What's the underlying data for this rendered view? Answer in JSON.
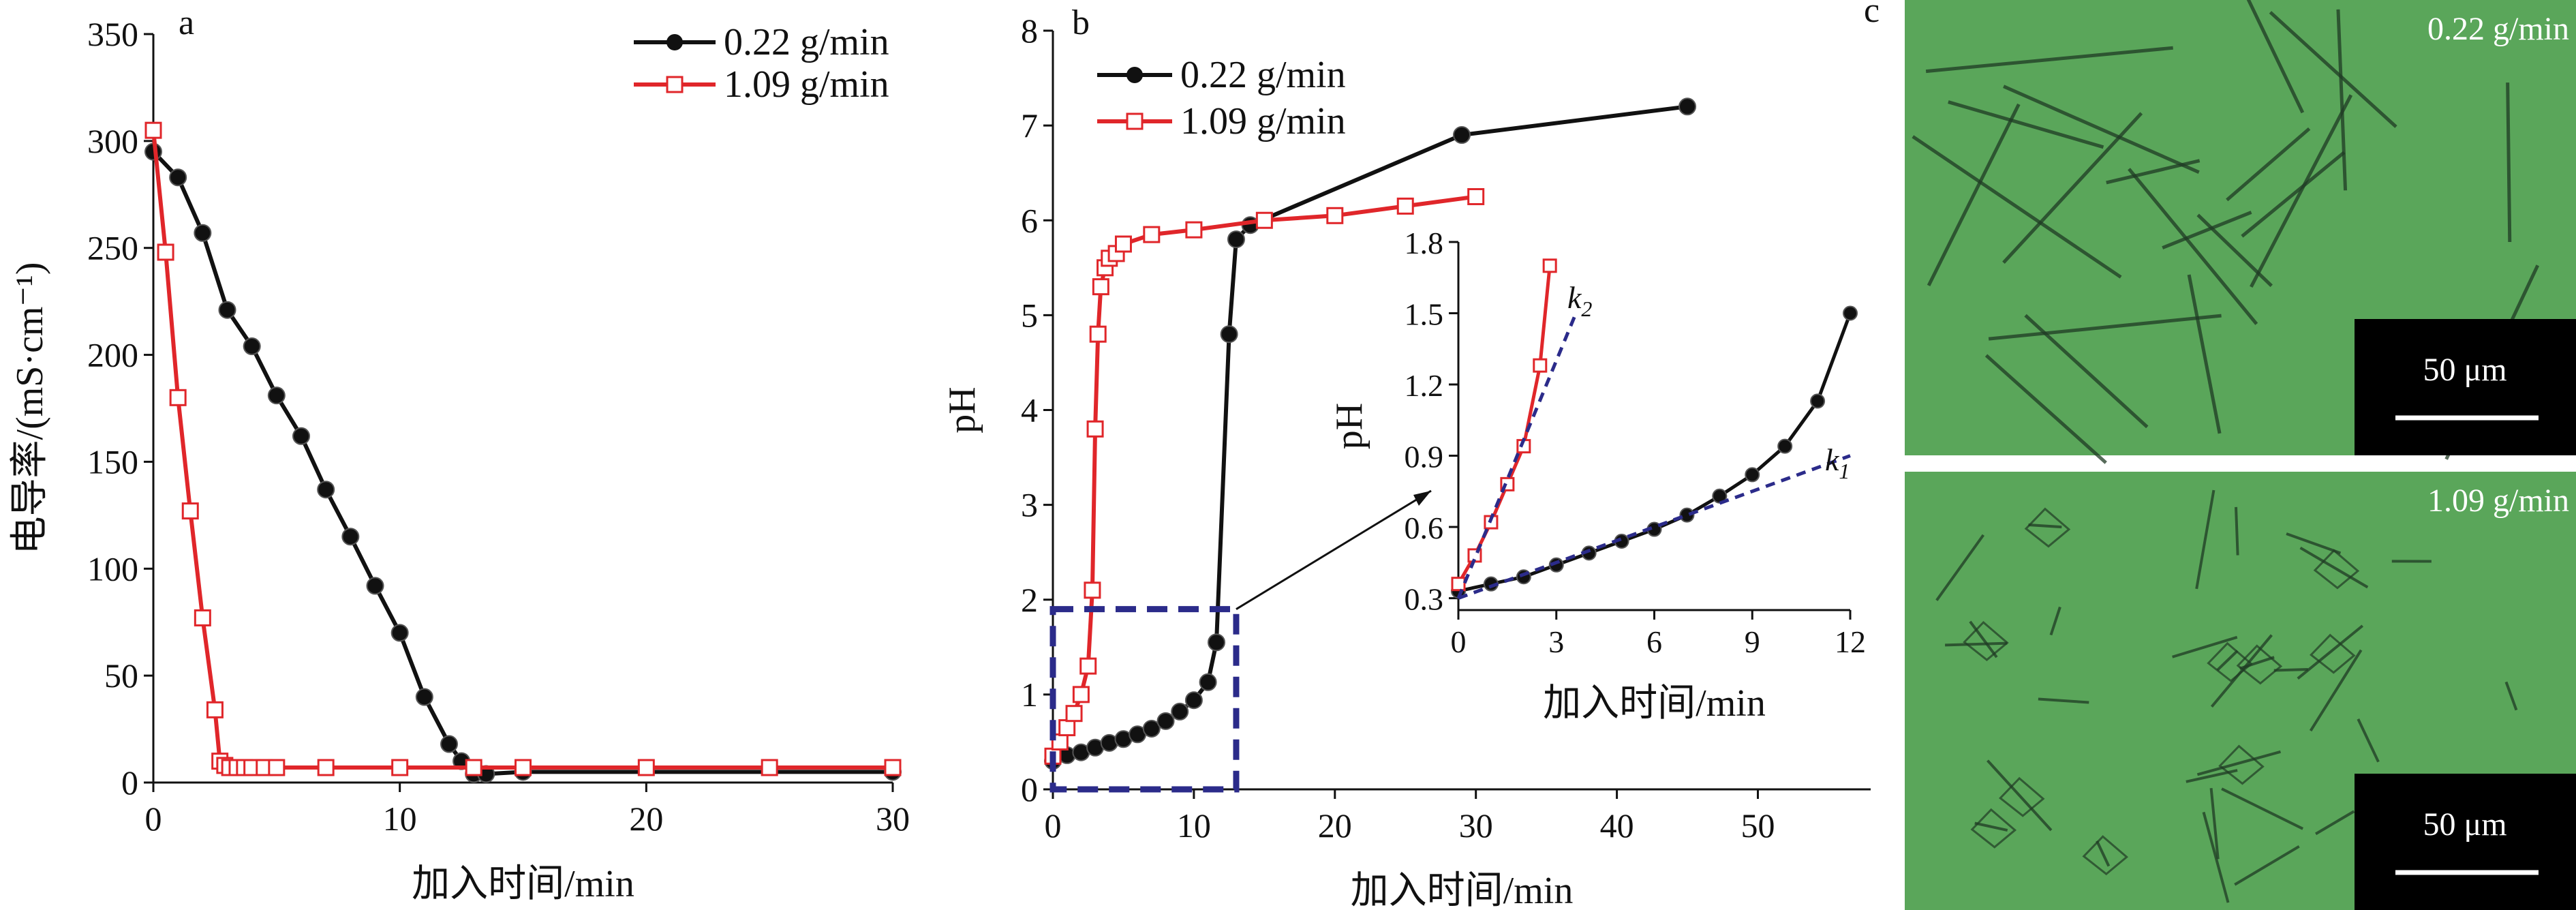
{
  "panel_labels": {
    "a": "a",
    "b": "b",
    "c": "c"
  },
  "colors": {
    "black_series": "#111111",
    "red_series": "#e0262a",
    "dashed": "#2b2b8a",
    "micro_bg": "#5aa65a"
  },
  "chart_data": [
    {
      "id": "a",
      "type": "line",
      "xlabel": "加入时间/min",
      "ylabel": "电导率/(mS·cm⁻¹)",
      "xlim": [
        0,
        30
      ],
      "ylim": [
        0,
        350
      ],
      "xticks": [
        "0",
        "10",
        "20",
        "30"
      ],
      "yticks": [
        "0",
        "50",
        "100",
        "150",
        "200",
        "250",
        "300",
        "350"
      ],
      "legend": "top-right",
      "series": [
        {
          "name": "0.22 g/min",
          "color": "#111111",
          "marker": "circle",
          "x": [
            0,
            1,
            2,
            3,
            4,
            5,
            6,
            7,
            8,
            9,
            10,
            11,
            12,
            12.5,
            13,
            13.5,
            15,
            30
          ],
          "y": [
            295,
            283,
            257,
            221,
            204,
            181,
            162,
            137,
            115,
            92,
            70,
            40,
            18,
            10,
            4,
            4,
            5,
            5
          ]
        },
        {
          "name": "1.09 g/min",
          "color": "#e0262a",
          "marker": "square",
          "x": [
            0,
            0.5,
            1,
            1.5,
            2,
            2.5,
            2.7,
            2.9,
            3.1,
            3.4,
            3.7,
            4,
            4.5,
            5,
            7,
            10,
            13,
            15,
            20,
            25,
            30
          ],
          "y": [
            305,
            248,
            180,
            127,
            77,
            34,
            10,
            8,
            7,
            7,
            7,
            7,
            7,
            7,
            7,
            7,
            7,
            7,
            7,
            7,
            7
          ]
        }
      ]
    },
    {
      "id": "b",
      "type": "line",
      "xlabel": "加入时间/min",
      "ylabel": "pH",
      "xlim": [
        0,
        58
      ],
      "ylim": [
        0,
        8
      ],
      "xticks": [
        "0",
        "10",
        "20",
        "30",
        "40",
        "50"
      ],
      "yticks": [
        "0",
        "1",
        "2",
        "3",
        "4",
        "5",
        "6",
        "7",
        "8"
      ],
      "legend": "top-left",
      "series": [
        {
          "name": "0.22 g/min",
          "color": "#111111",
          "marker": "circle",
          "x": [
            0,
            1,
            2,
            3,
            4,
            5,
            6,
            7,
            8,
            9,
            10,
            11,
            11.6,
            12.5,
            13,
            14,
            29,
            45
          ],
          "y": [
            0.3,
            0.36,
            0.39,
            0.44,
            0.49,
            0.53,
            0.58,
            0.64,
            0.72,
            0.82,
            0.94,
            1.13,
            1.55,
            4.8,
            5.8,
            5.95,
            6.9,
            7.2
          ]
        },
        {
          "name": "1.09 g/min",
          "color": "#e0262a",
          "marker": "square",
          "x": [
            0,
            0.5,
            1,
            1.5,
            2,
            2.5,
            2.8,
            3,
            3.2,
            3.4,
            3.7,
            4,
            4.5,
            5,
            7,
            10,
            15,
            20,
            25,
            30
          ],
          "y": [
            0.35,
            0.5,
            0.65,
            0.8,
            1.0,
            1.3,
            2.1,
            3.8,
            4.8,
            5.3,
            5.5,
            5.6,
            5.65,
            5.75,
            5.85,
            5.9,
            6.0,
            6.05,
            6.15,
            6.25
          ]
        }
      ],
      "inset": {
        "type": "line",
        "xlabel": "加入时间/min",
        "ylabel": "pH",
        "xlim": [
          0,
          12
        ],
        "ylim": [
          0.25,
          1.8
        ],
        "xticks": [
          "0",
          "3",
          "6",
          "9",
          "12"
        ],
        "yticks": [
          "0.3",
          "0.6",
          "0.9",
          "1.2",
          "1.5",
          "1.8"
        ],
        "annotations": [
          {
            "text": "k",
            "sub": "2"
          },
          {
            "text": "k",
            "sub": "1"
          }
        ],
        "series": [
          {
            "name": "0.22 g/min",
            "color": "#111111",
            "marker": "circle",
            "x": [
              0,
              1,
              2,
              3,
              4,
              5,
              6,
              7,
              8,
              9,
              10,
              11,
              12
            ],
            "y": [
              0.33,
              0.36,
              0.39,
              0.44,
              0.49,
              0.54,
              0.59,
              0.65,
              0.73,
              0.82,
              0.94,
              1.13,
              1.5
            ]
          },
          {
            "name": "1.09 g/min",
            "color": "#e0262a",
            "marker": "square",
            "x": [
              0,
              0.5,
              1,
              1.5,
              2,
              2.5,
              2.8
            ],
            "y": [
              0.36,
              0.48,
              0.62,
              0.78,
              0.94,
              1.28,
              1.7
            ]
          }
        ],
        "fits": [
          {
            "name": "k2",
            "x": [
              0,
              3.6
            ],
            "y": [
              0.3,
              1.5
            ]
          },
          {
            "name": "k1",
            "x": [
              0,
              12
            ],
            "y": [
              0.3,
              0.9
            ]
          }
        ]
      }
    }
  ],
  "micrographs": [
    {
      "label": "0.22 g/min",
      "scale_text": "50 μm"
    },
    {
      "label": "1.09 g/min",
      "scale_text": "50 μm"
    }
  ]
}
